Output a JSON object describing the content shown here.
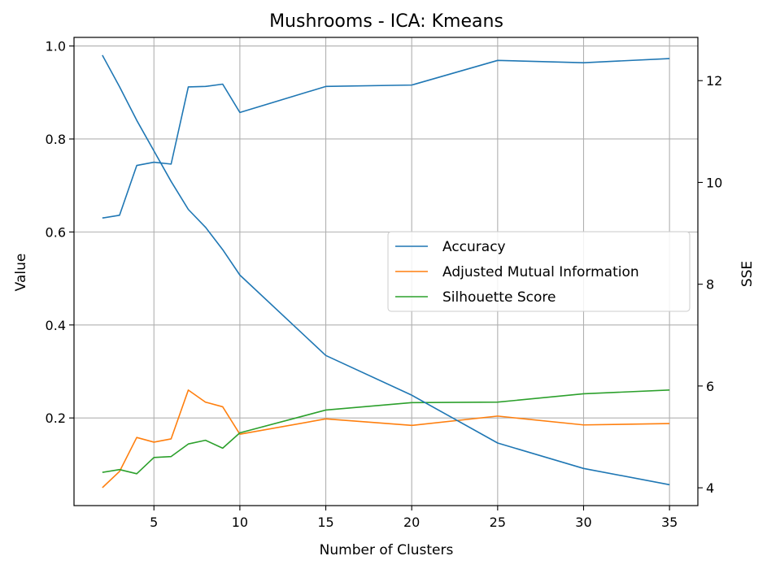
{
  "chart_data": {
    "type": "line",
    "title": "Mushrooms - ICA: Kmeans",
    "xlabel": "Number of Clusters",
    "ylabel": "Value",
    "y2label": "SSE",
    "xlim": [
      0.35,
      36.65
    ],
    "ylim": [
      0.0115,
      1.0185
    ],
    "y2lim": [
      3.65,
      12.85
    ],
    "xticks": [
      5,
      10,
      15,
      20,
      25,
      30,
      35
    ],
    "yticks": [
      0.2,
      0.4,
      0.6,
      0.8,
      1.0
    ],
    "y2ticks": [
      4,
      6,
      8,
      10,
      12
    ],
    "grid": true,
    "legend_position": "center-right",
    "x": [
      2,
      3,
      4,
      5,
      6,
      7,
      8,
      9,
      10,
      15,
      20,
      25,
      30,
      35
    ],
    "series": [
      {
        "name": "Accuracy",
        "color": "#1f77b4",
        "axis": "left",
        "values": [
          0.63,
          0.636,
          0.743,
          0.75,
          0.746,
          0.912,
          0.913,
          0.918,
          0.857,
          0.913,
          0.916,
          0.969,
          0.964,
          0.973
        ]
      },
      {
        "name": "Adjusted Mutual Information",
        "color": "#ff7f0e",
        "axis": "left",
        "values": [
          0.05,
          0.085,
          0.158,
          0.148,
          0.155,
          0.26,
          0.234,
          0.224,
          0.165,
          0.198,
          0.184,
          0.204,
          0.185,
          0.188
        ]
      },
      {
        "name": "Silhouette Score",
        "color": "#2ca02c",
        "axis": "left",
        "values": [
          0.083,
          0.089,
          0.08,
          0.115,
          0.117,
          0.144,
          0.152,
          0.135,
          0.168,
          0.217,
          0.233,
          0.234,
          0.252,
          0.26
        ]
      },
      {
        "name": "SSE",
        "color": "#1f77b4",
        "axis": "right",
        "values": [
          12.5,
          11.88,
          11.22,
          10.62,
          10.02,
          9.47,
          9.12,
          8.68,
          8.18,
          6.6,
          5.82,
          4.88,
          4.38,
          4.06
        ]
      }
    ]
  }
}
